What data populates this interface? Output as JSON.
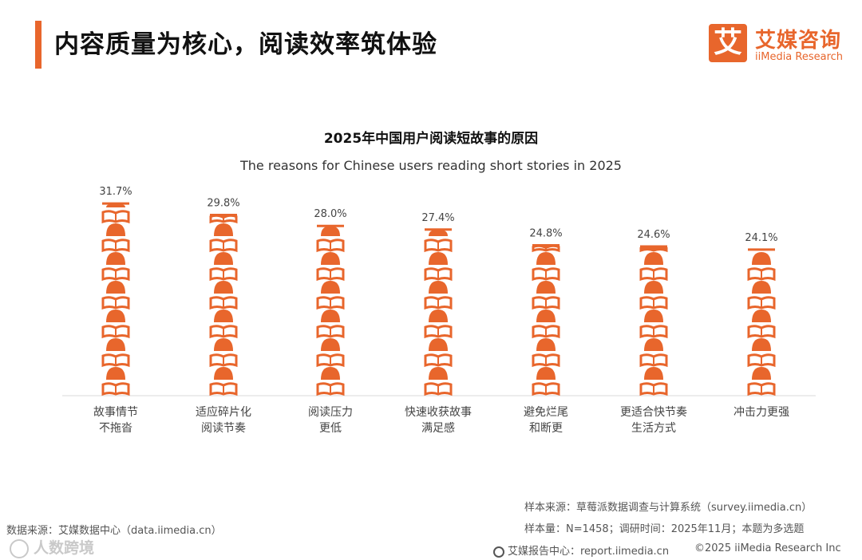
{
  "header": {
    "title": "内容质量为核心，阅读效率筑体验",
    "logo_mark": "艾",
    "logo_cn": "艾媒咨询",
    "logo_en": "iiMedia Research"
  },
  "chart_data": {
    "type": "bar",
    "title": "2025年中国用户阅读短故事的原因",
    "subtitle": "The reasons for Chinese users reading short stories in 2025",
    "categories": [
      [
        "故事情节",
        "不拖沓"
      ],
      [
        "适应碎片化",
        "阅读节奏"
      ],
      [
        "阅读压力",
        "更低"
      ],
      [
        "快速收获故事",
        "满足感"
      ],
      [
        "避免烂尾",
        "和断更"
      ],
      [
        "更适合快节奏",
        "生活方式"
      ],
      [
        "冲击力更强"
      ]
    ],
    "values": [
      31.7,
      29.8,
      28.0,
      27.4,
      24.8,
      24.6,
      24.1
    ],
    "value_labels": [
      "31.7%",
      "29.8%",
      "28.0%",
      "27.4%",
      "24.8%",
      "24.6%",
      "24.1%"
    ],
    "unit": "%",
    "color": "#e8662c",
    "grid": false
  },
  "footer": {
    "data_source": "数据来源：艾媒数据中心（data.iimedia.cn）",
    "sample_source": "样本来源：草莓派数据调查与计算系统（survey.iimedia.cn）",
    "sample_size": "样本量：N=1458；调研时间：2025年11月；本题为多选题",
    "report_center": "艾媒报告中心：report.iimedia.cn",
    "copyright": "©2025  iiMedia Research  Inc",
    "watermark": "人数跨境"
  }
}
